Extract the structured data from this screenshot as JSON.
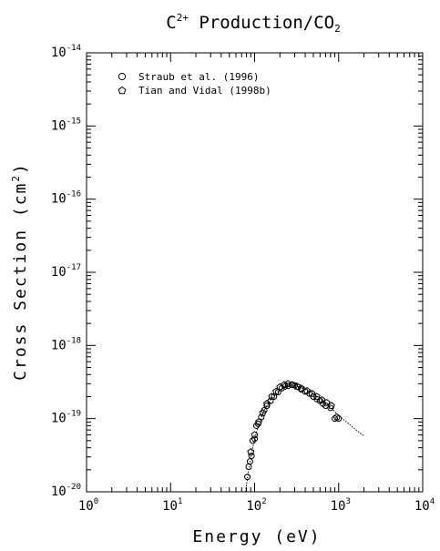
{
  "chart_data": {
    "type": "scatter",
    "title": {
      "pre": "C",
      "sup": "2+",
      "post": " Production/CO",
      "sub": "2"
    },
    "xlabel": "Energy (eV)",
    "ylabel": {
      "pre": "Cross Section (cm",
      "sup": "2",
      "post": ")"
    },
    "x_scale": "log",
    "y_scale": "log",
    "xlim": [
      1,
      10000
    ],
    "ylim": [
      1e-20,
      1e-14
    ],
    "x_ticks": [
      {
        "base": "10",
        "exp": "0",
        "value": 1
      },
      {
        "base": "10",
        "exp": "1",
        "value": 10
      },
      {
        "base": "10",
        "exp": "2",
        "value": 100
      },
      {
        "base": "10",
        "exp": "3",
        "value": 1000
      },
      {
        "base": "10",
        "exp": "4",
        "value": 10000
      }
    ],
    "y_ticks": [
      {
        "base": "10",
        "exp": "-14",
        "value": 1e-14
      },
      {
        "base": "10",
        "exp": "-15",
        "value": 1e-15
      },
      {
        "base": "10",
        "exp": "-16",
        "value": 1e-16
      },
      {
        "base": "10",
        "exp": "-17",
        "value": 1e-17
      },
      {
        "base": "10",
        "exp": "-18",
        "value": 1e-18
      },
      {
        "base": "10",
        "exp": "-19",
        "value": 1e-19
      },
      {
        "base": "10",
        "exp": "-20",
        "value": 1e-20
      }
    ],
    "grid": false,
    "legend_position": "top-left",
    "series": [
      {
        "name": "Straub et al. (1996)",
        "marker": "circle",
        "points": [
          [
            82,
            1.6e-20
          ],
          [
            85,
            2.2e-20
          ],
          [
            88,
            2.6e-20
          ],
          [
            92,
            3.1e-20
          ],
          [
            95,
            5e-20
          ],
          [
            100,
            5.3e-20
          ],
          [
            105,
            8e-20
          ],
          [
            110,
            8.5e-20
          ],
          [
            120,
            1.05e-19
          ],
          [
            130,
            1.3e-19
          ],
          [
            140,
            1.5e-19
          ],
          [
            155,
            1.75e-19
          ],
          [
            170,
            2e-19
          ],
          [
            190,
            2.3e-19
          ],
          [
            210,
            2.6e-19
          ],
          [
            230,
            2.75e-19
          ],
          [
            250,
            2.8e-19
          ],
          [
            275,
            2.9e-19
          ],
          [
            300,
            2.85e-19
          ],
          [
            330,
            2.7e-19
          ],
          [
            360,
            2.5e-19
          ],
          [
            400,
            2.35e-19
          ],
          [
            450,
            2.2e-19
          ],
          [
            500,
            2e-19
          ],
          [
            550,
            1.85e-19
          ],
          [
            600,
            1.75e-19
          ],
          [
            650,
            1.6e-19
          ],
          [
            700,
            1.5e-19
          ],
          [
            800,
            1.4e-19
          ],
          [
            900,
            1e-19
          ],
          [
            1000,
            1e-19
          ]
        ]
      },
      {
        "name": "Tian and Vidal (1998b)",
        "marker": "pentagon",
        "points": [
          [
            90,
            3.5e-20
          ],
          [
            100,
            6e-20
          ],
          [
            112,
            9e-20
          ],
          [
            125,
            1.2e-19
          ],
          [
            140,
            1.6e-19
          ],
          [
            160,
            2e-19
          ],
          [
            180,
            2.35e-19
          ],
          [
            200,
            2.7e-19
          ],
          [
            225,
            2.9e-19
          ],
          [
            250,
            3e-19
          ],
          [
            280,
            2.9e-19
          ],
          [
            320,
            2.75e-19
          ],
          [
            360,
            2.6e-19
          ],
          [
            420,
            2.4e-19
          ],
          [
            480,
            2.2e-19
          ],
          [
            550,
            2e-19
          ],
          [
            630,
            1.8e-19
          ],
          [
            720,
            1.65e-19
          ],
          [
            820,
            1.5e-19
          ],
          [
            950,
            1.05e-19
          ]
        ]
      },
      {
        "name": "",
        "marker": "line",
        "points": [
          [
            78,
            1e-20
          ],
          [
            85,
            2e-20
          ],
          [
            95,
            4e-20
          ],
          [
            110,
            8e-20
          ],
          [
            130,
            1.3e-19
          ],
          [
            160,
            1.9e-19
          ],
          [
            200,
            2.5e-19
          ],
          [
            250,
            2.85e-19
          ],
          [
            300,
            2.85e-19
          ],
          [
            400,
            2.5e-19
          ],
          [
            500,
            2.15e-19
          ],
          [
            700,
            1.65e-19
          ],
          [
            1000,
            1.1e-19
          ],
          [
            1500,
            7.5e-20
          ],
          [
            2000,
            5.8e-20
          ]
        ]
      }
    ]
  }
}
